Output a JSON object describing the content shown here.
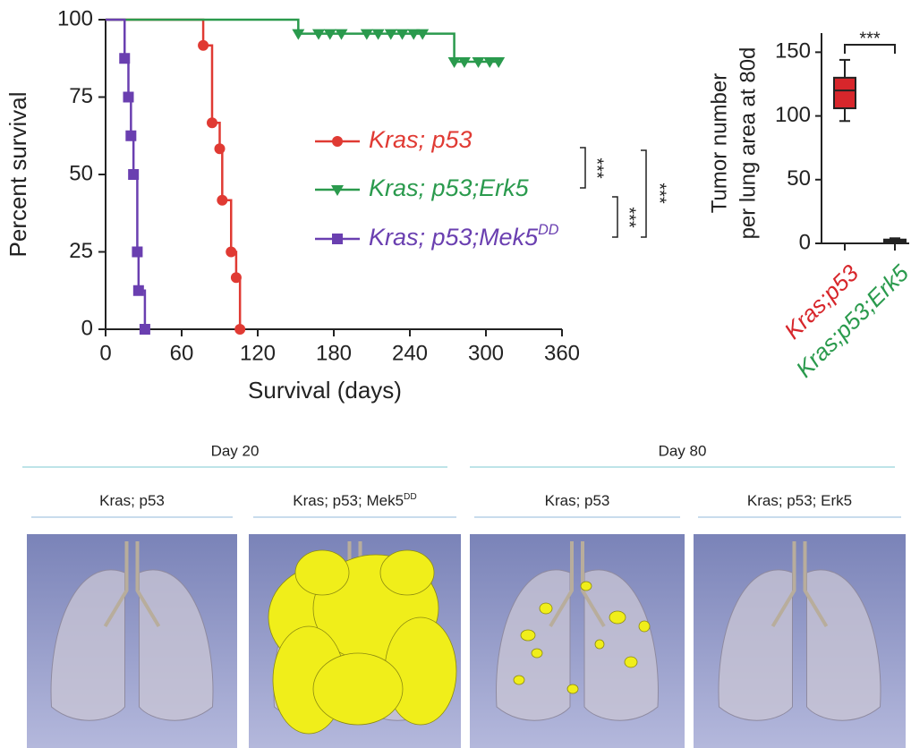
{
  "chart_data": [
    {
      "type": "step",
      "xlabel": "Survival (days)",
      "ylabel": "Percent survival",
      "xlim": [
        0,
        360
      ],
      "ylim": [
        0,
        100
      ],
      "xticks": [
        0,
        60,
        120,
        180,
        240,
        300,
        360
      ],
      "yticks": [
        0,
        25,
        50,
        75,
        100
      ],
      "series": [
        {
          "name": "Kras; p53",
          "color": "#e03a33",
          "marker": "circle",
          "x": [
            0,
            77,
            84,
            90,
            92,
            99,
            103,
            106
          ],
          "values": [
            100,
            91.7,
            66.7,
            58.3,
            41.7,
            25,
            16.7,
            0
          ]
        },
        {
          "name": "Kras; p53;Erk5",
          "color": "#2a9a4d",
          "marker": "triangle",
          "x": [
            0,
            152,
            168,
            177,
            186,
            206,
            215,
            225,
            234,
            243,
            250,
            275,
            283,
            294,
            303,
            310
          ],
          "values": [
            100,
            95.5,
            95.5,
            95.5,
            95.5,
            95.5,
            95.5,
            95.5,
            95.5,
            95.5,
            95.5,
            86.4,
            86.4,
            86.4,
            86.4,
            86.4
          ]
        },
        {
          "name": "Kras; p53;Mek5",
          "name_sup": "DD",
          "color": "#6a3fb0",
          "marker": "square",
          "x": [
            0,
            15,
            18,
            20,
            22,
            25,
            26,
            31
          ],
          "values": [
            100,
            87.5,
            75,
            62.5,
            50,
            25,
            12.5,
            0
          ]
        }
      ],
      "annotations": [
        "***",
        "***",
        "***"
      ]
    },
    {
      "type": "box",
      "ylabel": [
        "Tumor number",
        "per lung area at 80d"
      ],
      "ylim": [
        0,
        165
      ],
      "yticks": [
        0,
        50,
        100,
        150
      ],
      "categories": [
        "Kras;p53",
        "Kras;p53;Erk5"
      ],
      "colors": [
        "#d7262b",
        "#2a9a4d"
      ],
      "boxes": [
        {
          "min": 96,
          "q1": 106,
          "median": 120,
          "q3": 130,
          "max": 144
        },
        {
          "min": 0,
          "q1": 1,
          "median": 2,
          "q3": 3,
          "max": 4
        }
      ],
      "annotations": [
        "***"
      ]
    }
  ],
  "panels": {
    "groups": [
      {
        "title": "Day 20",
        "items": [
          {
            "label": "Kras; p53"
          },
          {
            "label": "Kras; p53; Mek5",
            "label_sup": "DD"
          }
        ]
      },
      {
        "title": "Day 80",
        "items": [
          {
            "label": "Kras; p53"
          },
          {
            "label": "Kras; p53; Erk5"
          }
        ]
      }
    ]
  }
}
